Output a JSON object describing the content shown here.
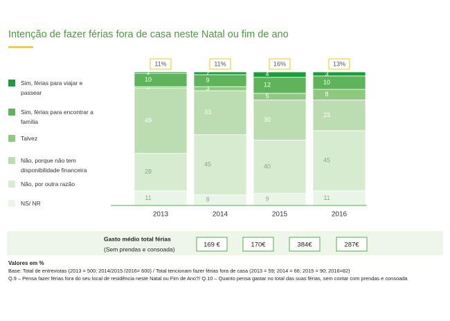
{
  "chart_data": {
    "type": "bar",
    "stacked": true,
    "title": "Intenção de fazer férias fora de casa neste Natal ou fim de ano",
    "categories": [
      "2013",
      "2014",
      "2015",
      "2016"
    ],
    "series": [
      {
        "name": "NS/ NR",
        "color": "#ebf5e7",
        "values": [
          11,
          8,
          9,
          11
        ]
      },
      {
        "name": "Não, por outra razão",
        "color": "#d6ebcf",
        "values": [
          28,
          45,
          40,
          45
        ]
      },
      {
        "name": "Não, porque não tem disponibilidade financeira",
        "color": "#bcdcb1",
        "values": [
          49,
          33,
          30,
          23
        ]
      },
      {
        "name": "Talvez",
        "color": "#8ec881",
        "values": [
          1,
          3,
          5,
          8
        ]
      },
      {
        "name": "Sim, férias para encontrar a família",
        "color": "#5fb35a",
        "values": [
          10,
          9,
          12,
          10
        ]
      },
      {
        "name": "Sim, férias para viajar e passear",
        "color": "#1e9a3f",
        "values": [
          1,
          2,
          4,
          3
        ]
      }
    ],
    "top_values": [
      11,
      11,
      16,
      13
    ],
    "top_value_labels": [
      "11%",
      "11%",
      "16%",
      "13%"
    ],
    "spending": {
      "title": "Gasto médio total férias",
      "subtitle": "(Sem prendas e consoada)",
      "values": [
        169,
        170,
        384,
        287
      ],
      "value_labels": [
        "169 €",
        "170€",
        "384€",
        "287€"
      ]
    },
    "notes": [
      "Valores em %",
      "Base: Total de entrevistas (2013 = 500; 2014/2015 /2016= 600) / Total tencionam fazer férias fora de casa (2013 = 59; 2014 = 66; 2015 = 90; 2016=82)",
      "Q.9 – Pensa fazer férias fora do  seu local de residência neste Natal ou Fim de Ano?/ Q.10 – Quanto pensa gastar no total das suas férias, sem contar com prendas e consoada"
    ]
  }
}
